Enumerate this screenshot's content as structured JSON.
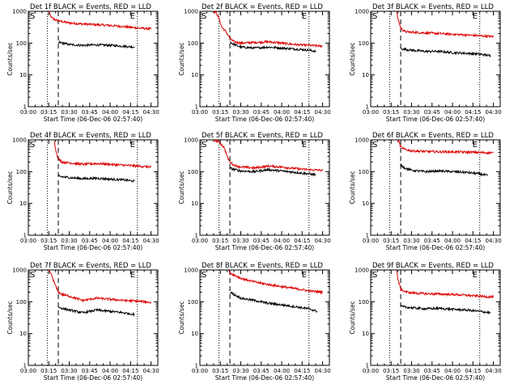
{
  "figure": {
    "panels": [
      {
        "title": "Det 1f BLACK = Events, RED = LLD",
        "s_marker": "S",
        "e_marker": "E"
      },
      {
        "title": "Det 2f BLACK = Events, RED = LLD",
        "s_marker": "S",
        "e_marker": "E"
      },
      {
        "title": "Det 3f BLACK = Events, RED = LLD",
        "s_marker": "S",
        "e_marker": "E"
      },
      {
        "title": "Det 4f BLACK = Events, RED = LLD",
        "s_marker": "S",
        "e_marker": "E"
      },
      {
        "title": "Det 5f BLACK = Events, RED = LLD",
        "s_marker": "S",
        "e_marker": "E"
      },
      {
        "title": "Det 6f BLACK = Events, RED = LLD",
        "s_marker": "S",
        "e_marker": "E"
      },
      {
        "title": "Det 7f BLACK = Events, RED = LLD",
        "s_marker": "S",
        "e_marker": "E"
      },
      {
        "title": "Det 8f BLACK = Events, RED = LLD",
        "s_marker": "S",
        "e_marker": "E"
      },
      {
        "title": "Det 9f BLACK = Events, RED = LLD",
        "s_marker": "S",
        "e_marker": "E"
      }
    ],
    "colors": {
      "events": "#000000",
      "lld": "#dd0000"
    }
  },
  "chart_data": [
    {
      "type": "line",
      "title": "Det 1f BLACK = Events, RED = LLD",
      "xlabel": "Start Time (06-Dec-06 02:57:40)",
      "ylabel": "Counts/sec",
      "xlim": [
        0,
        95
      ],
      "ylim": [
        1,
        1000
      ],
      "y_scale": "log",
      "x_ticks": [
        0,
        15,
        30,
        45,
        60,
        75,
        90
      ],
      "x_tick_labels": [
        "03:00",
        "03:15",
        "03:30",
        "03:45",
        "04:00",
        "04:15",
        "04:30"
      ],
      "y_ticks": [
        1,
        10,
        100,
        1000
      ],
      "y_tick_labels": [
        "1",
        "10",
        "100",
        "1000"
      ],
      "dotted_lines_x": [
        14,
        80
      ],
      "dashed_lines_x": [
        22
      ],
      "series": [
        {
          "color": "red",
          "x": [
            15,
            15.5,
            16,
            17,
            19,
            22,
            30,
            40,
            50,
            60,
            70,
            80,
            90
          ],
          "y": [
            1000,
            900,
            780,
            640,
            560,
            500,
            430,
            400,
            380,
            360,
            330,
            300,
            280
          ]
        },
        {
          "color": "black",
          "x": [
            22,
            23,
            30,
            40,
            50,
            60,
            70,
            78
          ],
          "y": [
            100,
            105,
            90,
            85,
            88,
            85,
            80,
            75
          ]
        }
      ]
    },
    {
      "type": "line",
      "title": "Det 2f BLACK = Events, RED = LLD",
      "xlabel": "Start Time (06-Dec-06 02:57:40)",
      "ylabel": "Counts/sec",
      "xlim": [
        0,
        95
      ],
      "ylim": [
        1,
        1000
      ],
      "y_scale": "log",
      "x_ticks": [
        0,
        15,
        30,
        45,
        60,
        75,
        90
      ],
      "x_tick_labels": [
        "03:00",
        "03:15",
        "03:30",
        "03:45",
        "04:00",
        "04:15",
        "04:30"
      ],
      "y_ticks": [
        1,
        10,
        100,
        1000
      ],
      "y_tick_labels": [
        "1",
        "10",
        "100",
        "1000"
      ],
      "dotted_lines_x": [
        14,
        80
      ],
      "dashed_lines_x": [
        22
      ],
      "series": [
        {
          "color": "red",
          "x": [
            10,
            12,
            14,
            16,
            18,
            20,
            22,
            25,
            30,
            40,
            50,
            60,
            70,
            80,
            90
          ],
          "y": [
            1000,
            900,
            600,
            320,
            260,
            200,
            140,
            110,
            100,
            105,
            110,
            100,
            90,
            85,
            80
          ]
        },
        {
          "color": "black",
          "x": [
            22,
            24,
            30,
            40,
            50,
            60,
            70,
            80,
            85
          ],
          "y": [
            110,
            95,
            75,
            70,
            75,
            70,
            65,
            60,
            55
          ]
        }
      ]
    },
    {
      "type": "line",
      "title": "Det 3f BLACK = Events, RED = LLD",
      "xlabel": "Start Time (06-Dec-06 02:57:40)",
      "ylabel": "Counts/sec",
      "xlim": [
        0,
        95
      ],
      "ylim": [
        1,
        1000
      ],
      "y_scale": "log",
      "x_ticks": [
        0,
        15,
        30,
        45,
        60,
        75,
        90
      ],
      "x_tick_labels": [
        "03:00",
        "03:15",
        "03:30",
        "03:45",
        "04:00",
        "04:15",
        "04:30"
      ],
      "y_ticks": [
        1,
        10,
        100,
        1000
      ],
      "y_tick_labels": [
        "1",
        "10",
        "100",
        "1000"
      ],
      "dotted_lines_x": [
        14,
        80
      ],
      "dashed_lines_x": [
        22
      ],
      "series": [
        {
          "color": "red",
          "x": [
            19,
            20,
            22,
            25,
            30,
            40,
            50,
            60,
            70,
            80,
            90
          ],
          "y": [
            1000,
            600,
            300,
            230,
            220,
            210,
            200,
            190,
            180,
            170,
            160
          ]
        },
        {
          "color": "black",
          "x": [
            22,
            23,
            30,
            40,
            50,
            60,
            70,
            80,
            88
          ],
          "y": [
            70,
            65,
            60,
            55,
            55,
            50,
            48,
            45,
            40
          ]
        }
      ]
    },
    {
      "type": "line",
      "title": "Det 4f BLACK = Events, RED = LLD",
      "xlabel": "Start Time (06-Dec-06 02:57:40)",
      "ylabel": "Counts/sec",
      "xlim": [
        0,
        95
      ],
      "ylim": [
        1,
        1000
      ],
      "y_scale": "log",
      "x_ticks": [
        0,
        15,
        30,
        45,
        60,
        75,
        90
      ],
      "x_tick_labels": [
        "03:00",
        "03:15",
        "03:30",
        "03:45",
        "04:00",
        "04:15",
        "04:30"
      ],
      "y_ticks": [
        1,
        10,
        100,
        1000
      ],
      "y_tick_labels": [
        "1",
        "10",
        "100",
        "1000"
      ],
      "dotted_lines_x": [
        14,
        80
      ],
      "dashed_lines_x": [
        22
      ],
      "series": [
        {
          "color": "red",
          "x": [
            19,
            20,
            22,
            25,
            30,
            40,
            50,
            60,
            70,
            80,
            90
          ],
          "y": [
            1000,
            500,
            250,
            200,
            190,
            170,
            180,
            170,
            160,
            150,
            140
          ]
        },
        {
          "color": "black",
          "x": [
            22,
            23,
            30,
            40,
            50,
            60,
            70,
            78
          ],
          "y": [
            75,
            70,
            65,
            60,
            62,
            58,
            55,
            50
          ]
        }
      ]
    },
    {
      "type": "line",
      "title": "Det 5f BLACK = Events, RED = LLD",
      "xlabel": "Start Time (06-Dec-06 02:57:40)",
      "ylabel": "Counts/sec",
      "xlim": [
        0,
        95
      ],
      "ylim": [
        1,
        1000
      ],
      "y_scale": "log",
      "x_ticks": [
        0,
        15,
        30,
        45,
        60,
        75,
        90
      ],
      "x_tick_labels": [
        "03:00",
        "03:15",
        "03:30",
        "03:45",
        "04:00",
        "04:15",
        "04:30"
      ],
      "y_ticks": [
        1,
        10,
        100,
        1000
      ],
      "y_tick_labels": [
        "1",
        "10",
        "100",
        "1000"
      ],
      "dotted_lines_x": [
        14,
        80
      ],
      "dashed_lines_x": [
        22
      ],
      "series": [
        {
          "color": "red",
          "x": [
            10,
            12,
            14,
            16,
            18,
            20,
            22,
            25,
            30,
            40,
            50,
            60,
            70,
            80,
            90
          ],
          "y": [
            1000,
            950,
            850,
            700,
            550,
            300,
            200,
            160,
            140,
            130,
            150,
            140,
            125,
            115,
            110
          ]
        },
        {
          "color": "black",
          "x": [
            22,
            24,
            30,
            40,
            50,
            60,
            70,
            80,
            85
          ],
          "y": [
            130,
            120,
            105,
            100,
            115,
            105,
            95,
            85,
            80
          ]
        }
      ]
    },
    {
      "type": "line",
      "title": "Det 6f BLACK = Events, RED = LLD",
      "xlabel": "Start Time (06-Dec-06 02:57:40)",
      "ylabel": "Counts/sec",
      "xlim": [
        0,
        95
      ],
      "ylim": [
        1,
        1000
      ],
      "y_scale": "log",
      "x_ticks": [
        0,
        15,
        30,
        45,
        60,
        75,
        90
      ],
      "x_tick_labels": [
        "03:00",
        "03:15",
        "03:30",
        "03:45",
        "04:00",
        "04:15",
        "04:30"
      ],
      "y_ticks": [
        1,
        10,
        100,
        1000
      ],
      "y_tick_labels": [
        "1",
        "10",
        "100",
        "1000"
      ],
      "dotted_lines_x": [
        14,
        80
      ],
      "dashed_lines_x": [
        22
      ],
      "series": [
        {
          "color": "red",
          "x": [
            20,
            21,
            22,
            25,
            30,
            40,
            50,
            60,
            70,
            80,
            90
          ],
          "y": [
            1000,
            800,
            600,
            500,
            450,
            430,
            420,
            420,
            410,
            400,
            390
          ]
        },
        {
          "color": "black",
          "x": [
            22,
            23,
            25,
            30,
            40,
            50,
            60,
            70,
            80,
            86
          ],
          "y": [
            170,
            150,
            130,
            110,
            100,
            105,
            100,
            95,
            85,
            75
          ]
        }
      ]
    },
    {
      "type": "line",
      "title": "Det 7f BLACK = Events, RED = LLD",
      "xlabel": "Start Time (06-Dec-06 02:57:40)",
      "ylabel": "Counts/sec",
      "xlim": [
        0,
        95
      ],
      "ylim": [
        1,
        1000
      ],
      "y_scale": "log",
      "x_ticks": [
        0,
        15,
        30,
        45,
        60,
        75,
        90
      ],
      "x_tick_labels": [
        "03:00",
        "03:15",
        "03:30",
        "03:45",
        "04:00",
        "04:15",
        "04:30"
      ],
      "y_ticks": [
        1,
        10,
        100,
        1000
      ],
      "y_tick_labels": [
        "1",
        "10",
        "100",
        "1000"
      ],
      "dotted_lines_x": [
        14,
        80
      ],
      "dashed_lines_x": [
        22
      ],
      "series": [
        {
          "color": "red",
          "x": [
            15,
            17,
            19,
            21,
            22,
            25,
            30,
            40,
            50,
            60,
            70,
            80,
            90
          ],
          "y": [
            1000,
            700,
            400,
            250,
            200,
            170,
            150,
            110,
            130,
            120,
            110,
            105,
            95
          ]
        },
        {
          "color": "black",
          "x": [
            22,
            23,
            30,
            40,
            50,
            60,
            70,
            78
          ],
          "y": [
            70,
            65,
            55,
            45,
            55,
            50,
            45,
            40
          ]
        }
      ]
    },
    {
      "type": "line",
      "title": "Det 8f BLACK = Events, RED = LLD",
      "xlabel": "Start Time (06-Dec-06 02:57:40)",
      "ylabel": "Counts/sec",
      "xlim": [
        0,
        95
      ],
      "ylim": [
        1,
        1000
      ],
      "y_scale": "log",
      "x_ticks": [
        0,
        15,
        30,
        45,
        60,
        75,
        90
      ],
      "x_tick_labels": [
        "03:00",
        "03:15",
        "03:30",
        "03:45",
        "04:00",
        "04:15",
        "04:30"
      ],
      "y_ticks": [
        1,
        10,
        100,
        1000
      ],
      "y_tick_labels": [
        "1",
        "10",
        "100",
        "1000"
      ],
      "dotted_lines_x": [
        14,
        80
      ],
      "dashed_lines_x": [
        22
      ],
      "series": [
        {
          "color": "red",
          "x": [
            21,
            22,
            25,
            30,
            40,
            50,
            60,
            70,
            80,
            90
          ],
          "y": [
            1000,
            800,
            700,
            550,
            420,
            350,
            300,
            260,
            220,
            200
          ]
        },
        {
          "color": "black",
          "x": [
            22,
            23,
            25,
            30,
            40,
            50,
            60,
            70,
            80,
            86
          ],
          "y": [
            200,
            190,
            170,
            130,
            110,
            90,
            80,
            70,
            60,
            50
          ]
        }
      ]
    },
    {
      "type": "line",
      "title": "Det 9f BLACK = Events, RED = LLD",
      "xlabel": "Start Time (06-Dec-06 02:57:40)",
      "ylabel": "Counts/sec",
      "xlim": [
        0,
        95
      ],
      "ylim": [
        1,
        1000
      ],
      "y_scale": "log",
      "x_ticks": [
        0,
        15,
        30,
        45,
        60,
        75,
        90
      ],
      "x_tick_labels": [
        "03:00",
        "03:15",
        "03:30",
        "03:45",
        "04:00",
        "04:15",
        "04:30"
      ],
      "y_ticks": [
        1,
        10,
        100,
        1000
      ],
      "y_tick_labels": [
        "1",
        "10",
        "100",
        "1000"
      ],
      "dotted_lines_x": [
        14,
        80
      ],
      "dashed_lines_x": [
        22
      ],
      "series": [
        {
          "color": "red",
          "x": [
            19,
            20,
            22,
            25,
            30,
            40,
            50,
            60,
            70,
            80,
            90
          ],
          "y": [
            1000,
            500,
            250,
            210,
            190,
            180,
            175,
            170,
            160,
            150,
            140
          ]
        },
        {
          "color": "black",
          "x": [
            22,
            23,
            30,
            40,
            50,
            60,
            70,
            80,
            88
          ],
          "y": [
            75,
            70,
            65,
            60,
            62,
            58,
            55,
            50,
            45
          ]
        }
      ]
    }
  ]
}
